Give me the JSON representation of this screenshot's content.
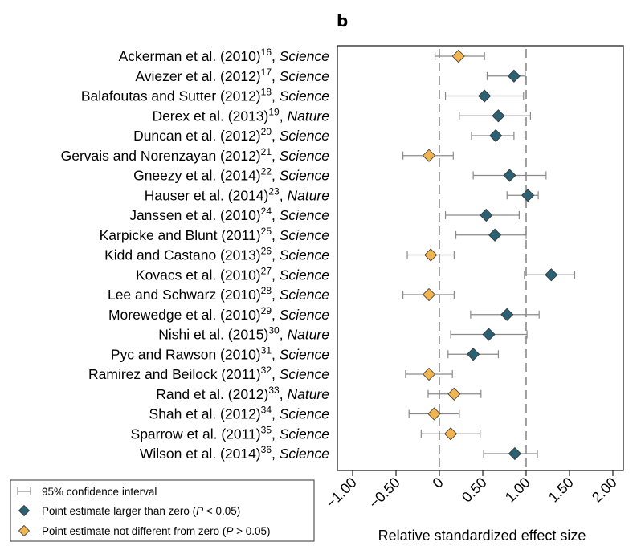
{
  "chart_data": {
    "type": "forest",
    "panel_label": "b",
    "xlabel": "Relative standardized effect size",
    "xlim": [
      -1.15,
      2.05
    ],
    "xticks": [
      -1.0,
      -0.5,
      0.0,
      0.5,
      1.0,
      1.5,
      2.0
    ],
    "xtick_labels": [
      "−1.00",
      "−0.50",
      "0",
      "0.50",
      "1.00",
      "1.50",
      "2.00"
    ],
    "reference_lines": [
      0,
      1
    ],
    "colors": {
      "significant": "#2b6173",
      "not_significant": "#f0b451",
      "ci": "#8a8a8a",
      "dashed": "#8a8a8a",
      "frame": "#222222"
    },
    "studies": [
      {
        "name": "Ackerman et al. (2010)",
        "ref": "16",
        "journal": "Science",
        "estimate": 0.22,
        "ci_low": -0.05,
        "ci_high": 0.52,
        "significant": false
      },
      {
        "name": "Aviezer et al. (2012)",
        "ref": "17",
        "journal": "Science",
        "estimate": 0.86,
        "ci_low": 0.55,
        "ci_high": 0.99,
        "significant": true
      },
      {
        "name": "Balafoutas and Sutter (2012)",
        "ref": "18",
        "journal": "Science",
        "estimate": 0.52,
        "ci_low": 0.07,
        "ci_high": 0.97,
        "significant": true
      },
      {
        "name": "Derex et al. (2013)",
        "ref": "19",
        "journal": "Nature",
        "estimate": 0.68,
        "ci_low": 0.23,
        "ci_high": 1.05,
        "significant": true
      },
      {
        "name": "Duncan et al. (2012)",
        "ref": "20",
        "journal": "Science",
        "estimate": 0.65,
        "ci_low": 0.37,
        "ci_high": 0.86,
        "significant": true
      },
      {
        "name": "Gervais and Norenzayan (2012)",
        "ref": "21",
        "journal": "Science",
        "estimate": -0.12,
        "ci_low": -0.42,
        "ci_high": 0.16,
        "significant": false
      },
      {
        "name": "Gneezy et al. (2014)",
        "ref": "22",
        "journal": "Science",
        "estimate": 0.81,
        "ci_low": 0.39,
        "ci_high": 1.23,
        "significant": true
      },
      {
        "name": "Hauser et al. (2014)",
        "ref": "23",
        "journal": "Nature",
        "estimate": 1.02,
        "ci_low": 0.78,
        "ci_high": 1.14,
        "significant": true
      },
      {
        "name": "Janssen et al. (2010)",
        "ref": "24",
        "journal": "Science",
        "estimate": 0.54,
        "ci_low": 0.07,
        "ci_high": 0.92,
        "significant": true
      },
      {
        "name": "Karpicke and Blunt (2011)",
        "ref": "25",
        "journal": "Science",
        "estimate": 0.64,
        "ci_low": 0.19,
        "ci_high": 1.0,
        "significant": true
      },
      {
        "name": "Kidd and Castano (2013)",
        "ref": "26",
        "journal": "Science",
        "estimate": -0.1,
        "ci_low": -0.37,
        "ci_high": 0.17,
        "significant": false
      },
      {
        "name": "Kovacs et al. (2010)",
        "ref": "27",
        "journal": "Science",
        "estimate": 1.29,
        "ci_low": 0.98,
        "ci_high": 1.56,
        "significant": true
      },
      {
        "name": "Lee and Schwarz (2010)",
        "ref": "28",
        "journal": "Science",
        "estimate": -0.12,
        "ci_low": -0.42,
        "ci_high": 0.17,
        "significant": false
      },
      {
        "name": "Morewedge et al. (2010)",
        "ref": "29",
        "journal": "Science",
        "estimate": 0.78,
        "ci_low": 0.36,
        "ci_high": 1.15,
        "significant": true
      },
      {
        "name": "Nishi et al. (2015)",
        "ref": "30",
        "journal": "Nature",
        "estimate": 0.57,
        "ci_low": 0.13,
        "ci_high": 1.01,
        "significant": true
      },
      {
        "name": "Pyc and Rawson (2010)",
        "ref": "31",
        "journal": "Science",
        "estimate": 0.39,
        "ci_low": 0.1,
        "ci_high": 0.68,
        "significant": true
      },
      {
        "name": "Ramirez and Beilock (2011)",
        "ref": "32",
        "journal": "Science",
        "estimate": -0.12,
        "ci_low": -0.39,
        "ci_high": 0.15,
        "significant": false
      },
      {
        "name": "Rand et al. (2012)",
        "ref": "33",
        "journal": "Nature",
        "estimate": 0.17,
        "ci_low": -0.13,
        "ci_high": 0.48,
        "significant": false
      },
      {
        "name": "Shah et al. (2012)",
        "ref": "34",
        "journal": "Science",
        "estimate": -0.06,
        "ci_low": -0.35,
        "ci_high": 0.23,
        "significant": false
      },
      {
        "name": "Sparrow et al. (2011)",
        "ref": "35",
        "journal": "Science",
        "estimate": 0.13,
        "ci_low": -0.21,
        "ci_high": 0.47,
        "significant": false
      },
      {
        "name": "Wilson et al. (2014)",
        "ref": "36",
        "journal": "Science",
        "estimate": 0.87,
        "ci_low": 0.51,
        "ci_high": 1.13,
        "significant": true
      }
    ],
    "legend": [
      {
        "kind": "ci",
        "text": "95% confidence interval"
      },
      {
        "kind": "significant",
        "text_pre": "Point estimate larger than zero (",
        "p": "P",
        "text_post": " < 0.05)"
      },
      {
        "kind": "not_significant",
        "text_pre": "Point estimate not different from zero (",
        "p": "P",
        "text_post": " > 0.05)"
      }
    ]
  }
}
